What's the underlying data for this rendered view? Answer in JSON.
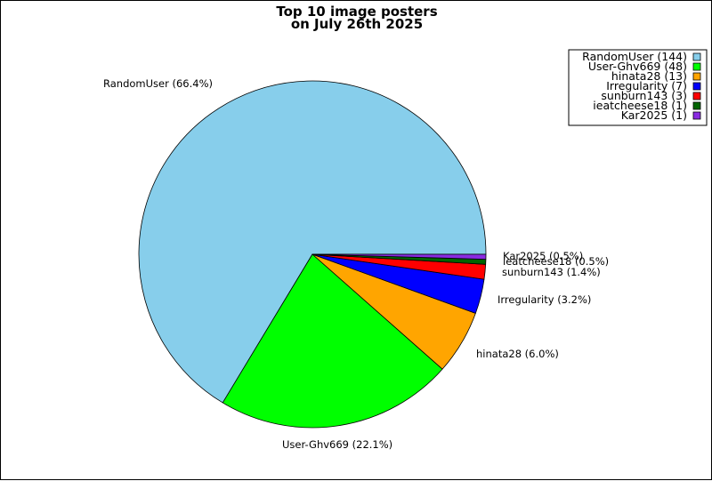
{
  "chart_data": {
    "type": "pie",
    "title_line1": "Top 10 image posters",
    "title_line2": "on July 26th 2025",
    "legend_position": "top-right",
    "slices": [
      {
        "name": "RandomUser",
        "value": 144,
        "percent_label": "RandomUser (66.4%)",
        "legend_label": "RandomUser (144)",
        "color": "#87CEEB"
      },
      {
        "name": "User-Ghv669",
        "value": 48,
        "percent_label": "User-Ghv669 (22.1%)",
        "legend_label": "User-Ghv669 (48)",
        "color": "#00FF00"
      },
      {
        "name": "hinata28",
        "value": 13,
        "percent_label": "hinata28 (6.0%)",
        "legend_label": "hinata28 (13)",
        "color": "#FFA500"
      },
      {
        "name": "Irregularity",
        "value": 7,
        "percent_label": "Irregularity (3.2%)",
        "legend_label": "Irregularity (7)",
        "color": "#0000FF"
      },
      {
        "name": "sunburn143",
        "value": 3,
        "percent_label": "sunburn143 (1.4%)",
        "legend_label": "sunburn143 (3)",
        "color": "#FF0000"
      },
      {
        "name": "ieatcheese18",
        "value": 1,
        "percent_label": "ieatcheese18 (0.5%)",
        "legend_label": "ieatcheese18 (1)",
        "color": "#006400"
      },
      {
        "name": "Kar2025",
        "value": 1,
        "percent_label": "Kar2025 (0.5%)",
        "legend_label": "Kar2025 (1)",
        "color": "#8A2BE2"
      }
    ]
  }
}
